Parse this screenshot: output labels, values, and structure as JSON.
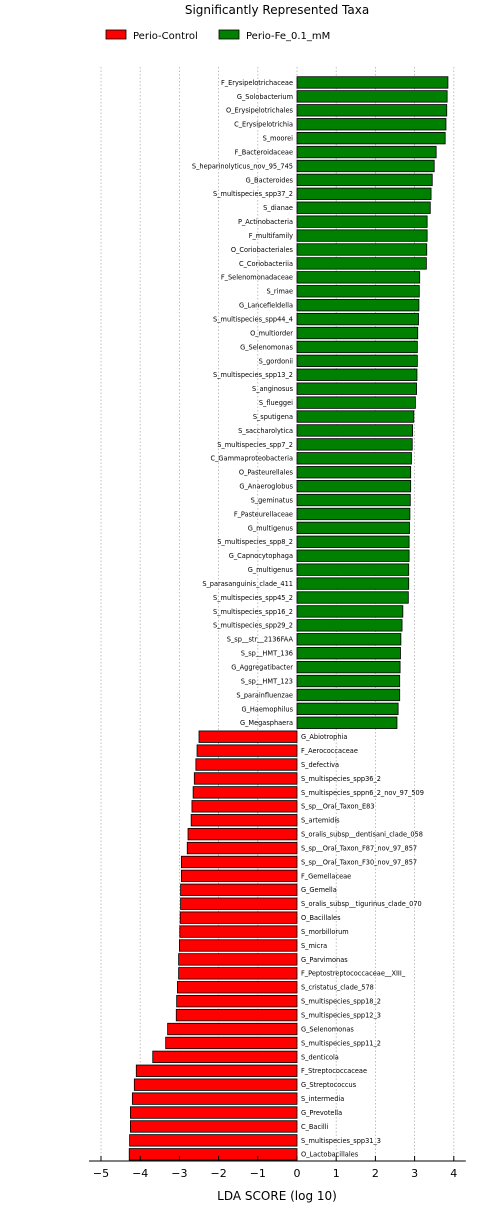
{
  "chart_data": {
    "type": "bar",
    "orientation": "horizontal",
    "title": "Significantly Represented Taxa",
    "xlabel": "LDA SCORE (log 10)",
    "ylabel": "",
    "xlim": [
      -5,
      4
    ],
    "xticks": [
      "−5",
      "−4",
      "−3",
      "−2",
      "−1",
      "0",
      "1",
      "2",
      "3",
      "4"
    ],
    "grid": "vertical dotted",
    "legend_position": "top",
    "series": [
      {
        "name": "Perio-Control",
        "color": "#ff0000",
        "categories": [
          "G_Abiotrophia",
          "F_Aerococcaceae",
          "S_defectiva",
          "S_multispecies_spp36_2",
          "S_multispecies_sppn6_2_nov_97_509",
          "S_sp__Oral_Taxon_E83",
          "S_artemidis",
          "S_oralis_subsp__dentisani_clade_058",
          "S_sp__Oral_Taxon_F87_nov_97_857",
          "S_sp__Oral_Taxon_F30_nov_97_857",
          "F_Gemellaceae",
          "G_Gemella",
          "S_oralis_subsp__tigurinus_clade_070",
          "O_Bacillales",
          "S_morbillorum",
          "S_micra",
          "G_Parvimonas",
          "F_Peptostreptococcaceae__XIII_",
          "S_cristatus_clade_578",
          "S_multispecies_spp18_2",
          "S_multispecies_spp12_3",
          "G_Selenomonas",
          "S_multispecies_spp11_2",
          "S_denticola",
          "F_Streptococcaceae",
          "G_Streptococcus",
          "S_intermedia",
          "G_Prevotella",
          "C_Bacilli",
          "S_multispecies_spp31_3",
          "O_Lactobacillales"
        ],
        "values": [
          -2.5,
          -2.55,
          -2.58,
          -2.62,
          -2.65,
          -2.68,
          -2.7,
          -2.78,
          -2.8,
          -2.95,
          -2.95,
          -2.97,
          -2.97,
          -2.98,
          -2.99,
          -3.0,
          -3.02,
          -3.02,
          -3.05,
          -3.07,
          -3.08,
          -3.3,
          -3.35,
          -3.68,
          -4.1,
          -4.15,
          -4.2,
          -4.25,
          -4.25,
          -4.27,
          -4.28
        ]
      },
      {
        "name": "Perio-Fe_0.1_mM",
        "color": "#008000",
        "categories": [
          "F_Erysipelotrichaceae",
          "G_Solobacterium",
          "O_Erysipelotrichales",
          "C_Erysipelotrichia",
          "S_moorei",
          "F_Bacteroidaceae",
          "S_heparinolyticus_nov_95_745",
          "G_Bacteroides",
          "S_multispecies_spp37_2",
          "S_dianae",
          "P_Actinobacteria",
          "F_multifamily",
          "O_Coriobacteriales",
          "C_Coriobacteriia",
          "F_Selenomonadaceae",
          "S_rimae",
          "G_Lancefieldella",
          "S_multispecies_spp44_4",
          "O_multiorder",
          "G_Selenomonas",
          "S_gordonii",
          "S_multispecies_spp13_2",
          "S_anginosus",
          "S_flueggei",
          "S_sputigena",
          "S_saccharolytica",
          "S_multispecies_spp7_2",
          "C_Gammaproteobacteria",
          "O_Pasteurellales",
          "G_Anaeroglobus",
          "S_geminatus",
          "F_Pasteurellaceae",
          "G_multigenus",
          "S_multispecies_spp8_2",
          "G_Capnocytophaga",
          "G_multigenus",
          "S_parasanguinis_clade_411",
          "S_multispecies_spp45_2",
          "S_multispecies_spp16_2",
          "S_multispecies_spp29_2",
          "S_sp__str__2136FAA",
          "S_sp__HMT_136",
          "G_Aggregatibacter",
          "S_sp__HMT_123",
          "S_parainfluenzae",
          "G_Haemophilus",
          "G_Megasphaera"
        ],
        "values": [
          3.85,
          3.83,
          3.82,
          3.8,
          3.78,
          3.55,
          3.5,
          3.45,
          3.42,
          3.4,
          3.32,
          3.32,
          3.31,
          3.3,
          3.13,
          3.12,
          3.11,
          3.1,
          3.08,
          3.07,
          3.07,
          3.06,
          3.05,
          3.02,
          2.98,
          2.95,
          2.94,
          2.92,
          2.9,
          2.9,
          2.89,
          2.88,
          2.87,
          2.86,
          2.86,
          2.85,
          2.85,
          2.84,
          2.7,
          2.68,
          2.65,
          2.64,
          2.63,
          2.62,
          2.62,
          2.58,
          2.55
        ]
      }
    ]
  }
}
